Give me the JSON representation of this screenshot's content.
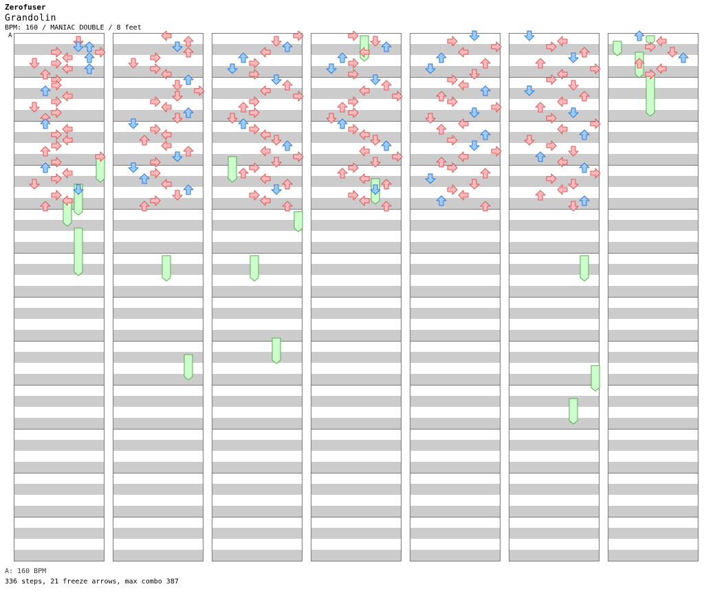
{
  "header": {
    "pack": "Zerofuser",
    "title": "Grandolin",
    "meta": "BPM: 160 / MANIAC DOUBLE / 8 feet"
  },
  "section_label": "A",
  "footer": {
    "bpm_line": "A: 160 BPM",
    "stats": "336 steps, 21 freeze arrows, max combo 387"
  },
  "colors": {
    "stripe": "#cccccc",
    "lane_bg": "#ffffff",
    "border": "#777777",
    "red_fill": "#ffbbbb",
    "red_stroke": "#dd5555",
    "blue_fill": "#99ccff",
    "blue_stroke": "#3377cc",
    "freeze_fill": "#ccffcc",
    "freeze_stroke": "#55aa55",
    "bpm_marker": "#6699ff"
  },
  "chart_data": {
    "type": "step_chart",
    "layout": "double",
    "lanes": [
      "p1-left",
      "p1-down",
      "p1-up",
      "p1-right",
      "p2-left",
      "p2-down",
      "p2-up",
      "p2-right"
    ],
    "columns": 7,
    "measures_per_column": 12,
    "rows_per_measure": 8,
    "notes": [
      [
        0,
        1,
        5
      ],
      [
        0,
        2,
        5
      ],
      [
        0,
        2,
        6
      ],
      [
        0,
        3,
        3
      ],
      [
        0,
        3,
        7
      ],
      [
        0,
        4,
        6
      ],
      [
        0,
        4,
        4
      ],
      [
        0,
        5,
        3
      ],
      [
        0,
        5,
        1
      ],
      [
        0,
        6,
        6
      ],
      [
        0,
        6,
        4
      ],
      [
        0,
        7,
        2
      ],
      [
        0,
        8,
        3
      ],
      [
        0,
        9,
        3
      ],
      [
        0,
        10,
        2
      ],
      [
        0,
        11,
        4
      ],
      [
        0,
        12,
        3
      ],
      [
        0,
        13,
        1
      ],
      [
        0,
        14,
        3
      ],
      [
        0,
        15,
        2
      ],
      [
        0,
        16,
        2
      ],
      [
        0,
        17,
        4
      ],
      [
        0,
        18,
        3
      ],
      [
        0,
        19,
        4
      ],
      [
        0,
        20,
        3
      ],
      [
        0,
        21,
        2
      ],
      [
        0,
        22,
        7
      ],
      [
        0,
        23,
        3
      ],
      [
        0,
        24,
        2
      ],
      [
        0,
        25,
        4
      ],
      [
        0,
        26,
        3
      ],
      [
        0,
        27,
        1
      ],
      [
        0,
        28,
        5
      ],
      [
        0,
        29,
        3
      ],
      [
        0,
        30,
        4
      ],
      [
        0,
        31,
        2
      ],
      [
        1,
        0,
        4
      ],
      [
        1,
        1,
        6
      ],
      [
        1,
        2,
        5
      ],
      [
        1,
        3,
        6
      ],
      [
        1,
        4,
        3
      ],
      [
        1,
        5,
        1
      ],
      [
        1,
        6,
        3
      ],
      [
        1,
        7,
        4
      ],
      [
        1,
        8,
        6
      ],
      [
        1,
        9,
        5
      ],
      [
        1,
        10,
        7
      ],
      [
        1,
        11,
        5
      ],
      [
        1,
        12,
        3
      ],
      [
        1,
        13,
        4
      ],
      [
        1,
        14,
        6
      ],
      [
        1,
        15,
        5
      ],
      [
        1,
        16,
        1
      ],
      [
        1,
        17,
        3
      ],
      [
        1,
        18,
        4
      ],
      [
        1,
        19,
        2
      ],
      [
        1,
        20,
        4
      ],
      [
        1,
        21,
        6
      ],
      [
        1,
        22,
        5
      ],
      [
        1,
        23,
        3
      ],
      [
        1,
        24,
        1
      ],
      [
        1,
        25,
        3
      ],
      [
        1,
        26,
        2
      ],
      [
        1,
        27,
        4
      ],
      [
        1,
        28,
        6
      ],
      [
        1,
        29,
        5
      ],
      [
        1,
        30,
        3
      ],
      [
        1,
        31,
        2
      ],
      [
        2,
        0,
        7
      ],
      [
        2,
        1,
        5
      ],
      [
        2,
        2,
        6
      ],
      [
        2,
        3,
        4
      ],
      [
        2,
        4,
        2
      ],
      [
        2,
        5,
        3
      ],
      [
        2,
        6,
        1
      ],
      [
        2,
        7,
        3
      ],
      [
        2,
        8,
        5
      ],
      [
        2,
        9,
        6
      ],
      [
        2,
        10,
        4
      ],
      [
        2,
        11,
        7
      ],
      [
        2,
        12,
        3
      ],
      [
        2,
        13,
        2
      ],
      [
        2,
        14,
        3
      ],
      [
        2,
        15,
        1
      ],
      [
        2,
        16,
        2
      ],
      [
        2,
        17,
        3
      ],
      [
        2,
        18,
        4
      ],
      [
        2,
        19,
        5
      ],
      [
        2,
        20,
        6
      ],
      [
        2,
        21,
        4
      ],
      [
        2,
        22,
        7
      ],
      [
        2,
        23,
        5
      ],
      [
        2,
        24,
        3
      ],
      [
        2,
        25,
        2
      ],
      [
        2,
        26,
        4
      ],
      [
        2,
        27,
        6
      ],
      [
        2,
        28,
        5
      ],
      [
        2,
        29,
        3
      ],
      [
        2,
        30,
        4
      ],
      [
        2,
        31,
        6
      ],
      [
        3,
        0,
        3
      ],
      [
        3,
        1,
        5
      ],
      [
        3,
        2,
        6
      ],
      [
        3,
        3,
        4
      ],
      [
        3,
        4,
        2
      ],
      [
        3,
        5,
        3
      ],
      [
        3,
        6,
        1
      ],
      [
        3,
        7,
        3
      ],
      [
        3,
        8,
        5
      ],
      [
        3,
        9,
        6
      ],
      [
        3,
        10,
        4
      ],
      [
        3,
        11,
        7
      ],
      [
        3,
        12,
        3
      ],
      [
        3,
        13,
        2
      ],
      [
        3,
        14,
        3
      ],
      [
        3,
        15,
        1
      ],
      [
        3,
        16,
        2
      ],
      [
        3,
        17,
        3
      ],
      [
        3,
        18,
        4
      ],
      [
        3,
        19,
        5
      ],
      [
        3,
        20,
        6
      ],
      [
        3,
        21,
        4
      ],
      [
        3,
        22,
        7
      ],
      [
        3,
        23,
        5
      ],
      [
        3,
        24,
        3
      ],
      [
        3,
        25,
        2
      ],
      [
        3,
        26,
        4
      ],
      [
        3,
        27,
        6
      ],
      [
        3,
        28,
        5
      ],
      [
        3,
        29,
        3
      ],
      [
        3,
        30,
        4
      ],
      [
        3,
        31,
        6
      ],
      [
        4,
        0,
        5
      ],
      [
        4,
        1,
        3
      ],
      [
        4,
        2,
        7
      ],
      [
        4,
        3,
        4
      ],
      [
        4,
        4,
        2
      ],
      [
        4,
        5,
        6
      ],
      [
        4,
        6,
        1
      ],
      [
        4,
        7,
        5
      ],
      [
        4,
        8,
        3
      ],
      [
        4,
        9,
        4
      ],
      [
        4,
        10,
        6
      ],
      [
        4,
        11,
        2
      ],
      [
        4,
        12,
        3
      ],
      [
        4,
        13,
        7
      ],
      [
        4,
        14,
        5
      ],
      [
        4,
        15,
        1
      ],
      [
        4,
        16,
        4
      ],
      [
        4,
        17,
        2
      ],
      [
        4,
        18,
        6
      ],
      [
        4,
        19,
        3
      ],
      [
        4,
        20,
        5
      ],
      [
        4,
        21,
        7
      ],
      [
        4,
        22,
        4
      ],
      [
        4,
        23,
        2
      ],
      [
        4,
        24,
        3
      ],
      [
        4,
        25,
        6
      ],
      [
        4,
        26,
        1
      ],
      [
        4,
        27,
        5
      ],
      [
        4,
        28,
        3
      ],
      [
        4,
        29,
        4
      ],
      [
        4,
        30,
        2
      ],
      [
        4,
        31,
        6
      ],
      [
        5,
        0,
        1
      ],
      [
        5,
        1,
        4
      ],
      [
        5,
        2,
        3
      ],
      [
        5,
        3,
        6
      ],
      [
        5,
        4,
        5
      ],
      [
        5,
        5,
        2
      ],
      [
        5,
        6,
        7
      ],
      [
        5,
        7,
        4
      ],
      [
        5,
        8,
        3
      ],
      [
        5,
        9,
        5
      ],
      [
        5,
        10,
        1
      ],
      [
        5,
        11,
        6
      ],
      [
        5,
        12,
        4
      ],
      [
        5,
        13,
        2
      ],
      [
        5,
        14,
        5
      ],
      [
        5,
        15,
        3
      ],
      [
        5,
        16,
        7
      ],
      [
        5,
        17,
        4
      ],
      [
        5,
        18,
        6
      ],
      [
        5,
        19,
        1
      ],
      [
        5,
        20,
        3
      ],
      [
        5,
        21,
        5
      ],
      [
        5,
        22,
        2
      ],
      [
        5,
        23,
        4
      ],
      [
        5,
        24,
        6
      ],
      [
        5,
        25,
        7
      ],
      [
        5,
        26,
        3
      ],
      [
        5,
        27,
        5
      ],
      [
        5,
        28,
        4
      ],
      [
        5,
        29,
        2
      ],
      [
        5,
        30,
        6
      ],
      [
        5,
        31,
        5
      ],
      [
        6,
        0,
        2
      ],
      [
        6,
        1,
        4
      ],
      [
        6,
        2,
        3
      ],
      [
        6,
        3,
        5
      ],
      [
        6,
        4,
        6
      ],
      [
        6,
        5,
        2
      ],
      [
        6,
        6,
        4
      ],
      [
        6,
        7,
        3
      ]
    ],
    "freezes": [
      [
        0,
        22,
        26,
        7
      ],
      [
        0,
        27,
        32,
        5
      ],
      [
        0,
        30,
        34,
        4
      ],
      [
        0,
        35,
        43,
        5
      ],
      [
        1,
        40,
        44,
        4
      ],
      [
        1,
        58,
        62,
        6
      ],
      [
        2,
        22,
        26,
        1
      ],
      [
        2,
        32,
        35,
        7
      ],
      [
        2,
        40,
        44,
        3
      ],
      [
        2,
        55,
        59,
        5
      ],
      [
        3,
        0,
        4,
        4
      ],
      [
        3,
        26,
        30,
        5
      ],
      [
        5,
        40,
        44,
        6
      ],
      [
        5,
        60,
        64,
        7
      ],
      [
        5,
        66,
        70,
        5
      ],
      [
        6,
        1,
        3,
        0
      ],
      [
        6,
        3,
        7,
        2
      ],
      [
        6,
        7,
        14,
        3
      ],
      [
        6,
        0,
        1,
        3
      ]
    ]
  }
}
